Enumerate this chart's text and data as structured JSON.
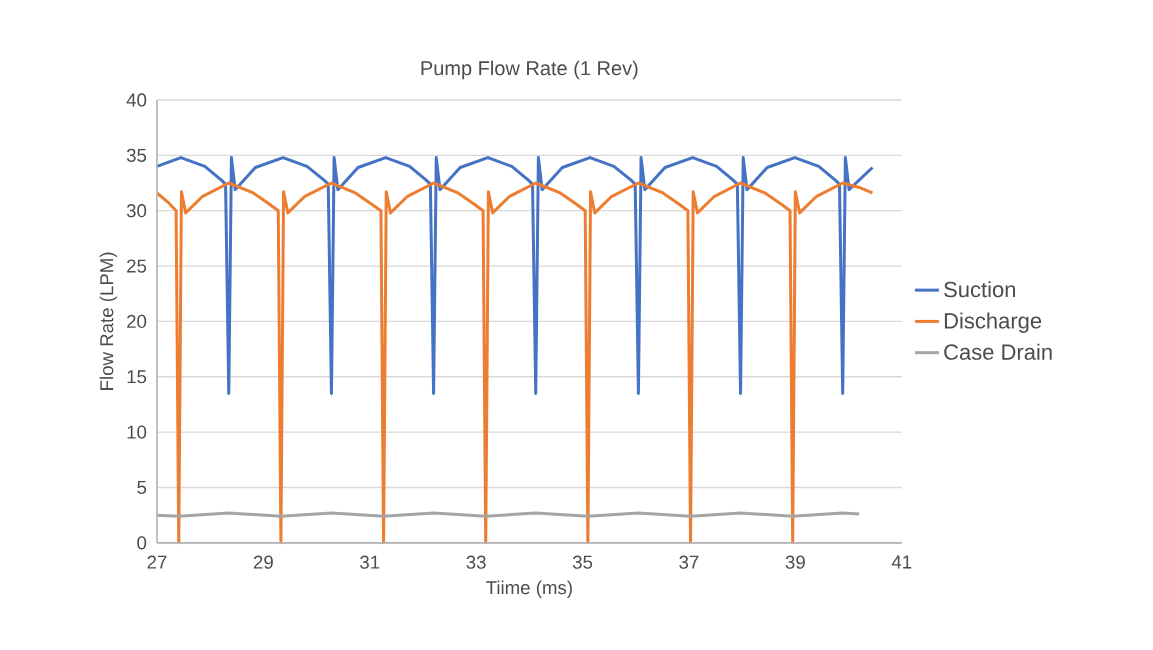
{
  "chart_data": {
    "type": "line",
    "title": "Pump Flow Rate (1 Rev)",
    "xlabel": "Tiime (ms)",
    "ylabel": "Flow Rate (LPM)",
    "xlim": [
      27,
      41
    ],
    "xticks": [
      27,
      29,
      31,
      33,
      35,
      37,
      39,
      41
    ],
    "ylim": [
      0,
      40
    ],
    "yticks": [
      0,
      5,
      10,
      15,
      20,
      25,
      30,
      35,
      40
    ],
    "grid": "y",
    "legend": "right",
    "marker": "none",
    "line_style": "solid",
    "series": [
      {
        "name": "Suction",
        "color": "#4472c4",
        "x": [
          27.0,
          27.45,
          27.9,
          28.2,
          28.29,
          28.35,
          28.4,
          28.47,
          28.85,
          29.37,
          29.82,
          30.13,
          30.22,
          30.28,
          30.33,
          30.4,
          30.78,
          31.3,
          31.75,
          32.05,
          32.14,
          32.2,
          32.25,
          32.32,
          32.7,
          33.22,
          33.67,
          33.97,
          34.06,
          34.12,
          34.17,
          34.24,
          34.62,
          35.14,
          35.59,
          35.9,
          35.99,
          36.05,
          36.1,
          36.17,
          36.55,
          37.07,
          37.52,
          37.82,
          37.91,
          37.97,
          38.02,
          38.09,
          38.47,
          38.99,
          39.44,
          39.74,
          39.83,
          39.89,
          39.94,
          40.01,
          40.45
        ],
        "values": [
          34.0,
          34.8,
          34.0,
          32.8,
          32.4,
          13.5,
          34.8,
          31.9,
          33.9,
          34.8,
          34.0,
          32.8,
          32.4,
          13.5,
          34.8,
          31.9,
          33.9,
          34.8,
          34.0,
          32.8,
          32.4,
          13.5,
          34.8,
          31.9,
          33.9,
          34.8,
          34.0,
          32.8,
          32.4,
          13.5,
          34.8,
          31.9,
          33.9,
          34.8,
          34.0,
          32.8,
          32.4,
          13.5,
          34.8,
          31.9,
          33.9,
          34.8,
          34.0,
          32.8,
          32.4,
          13.5,
          34.8,
          31.9,
          33.9,
          34.8,
          34.0,
          32.8,
          32.4,
          13.5,
          34.8,
          31.9,
          33.9
        ]
      },
      {
        "name": "Discharge",
        "color": "#ed7d31",
        "x": [
          27.0,
          27.2,
          27.36,
          27.41,
          27.46,
          27.54,
          27.86,
          28.35,
          28.81,
          29.11,
          29.28,
          29.33,
          29.38,
          29.46,
          29.78,
          30.28,
          30.73,
          31.03,
          31.21,
          31.26,
          31.31,
          31.39,
          31.71,
          32.2,
          32.66,
          32.96,
          33.13,
          33.18,
          33.23,
          33.31,
          33.63,
          34.12,
          34.58,
          34.88,
          35.05,
          35.1,
          35.15,
          35.23,
          35.55,
          36.05,
          36.51,
          36.81,
          36.98,
          37.03,
          37.08,
          37.16,
          37.48,
          37.97,
          38.43,
          38.73,
          38.9,
          38.95,
          39.0,
          39.08,
          39.4,
          39.89,
          40.2,
          40.45
        ],
        "values": [
          31.6,
          30.8,
          30.0,
          0,
          31.7,
          29.8,
          31.3,
          32.5,
          31.6,
          30.6,
          30.0,
          0,
          31.7,
          29.8,
          31.3,
          32.5,
          31.6,
          30.6,
          30.0,
          0,
          31.7,
          29.8,
          31.3,
          32.5,
          31.6,
          30.6,
          30.0,
          0,
          31.7,
          29.8,
          31.3,
          32.5,
          31.6,
          30.6,
          30.0,
          0,
          31.7,
          29.8,
          31.3,
          32.5,
          31.6,
          30.6,
          30.0,
          0,
          31.7,
          29.8,
          31.3,
          32.5,
          31.6,
          30.6,
          30.0,
          0,
          31.7,
          29.8,
          31.3,
          32.5,
          32.1,
          31.6
        ]
      },
      {
        "name": "Case Drain",
        "color": "#a5a5a5",
        "x": [
          27.0,
          27.41,
          28.35,
          29.33,
          30.28,
          31.26,
          32.2,
          33.18,
          34.12,
          35.1,
          36.05,
          37.03,
          37.97,
          38.95,
          39.89,
          40.2
        ],
        "values": [
          2.5,
          2.4,
          2.7,
          2.4,
          2.7,
          2.4,
          2.7,
          2.4,
          2.7,
          2.4,
          2.7,
          2.4,
          2.7,
          2.4,
          2.7,
          2.6
        ]
      }
    ]
  }
}
